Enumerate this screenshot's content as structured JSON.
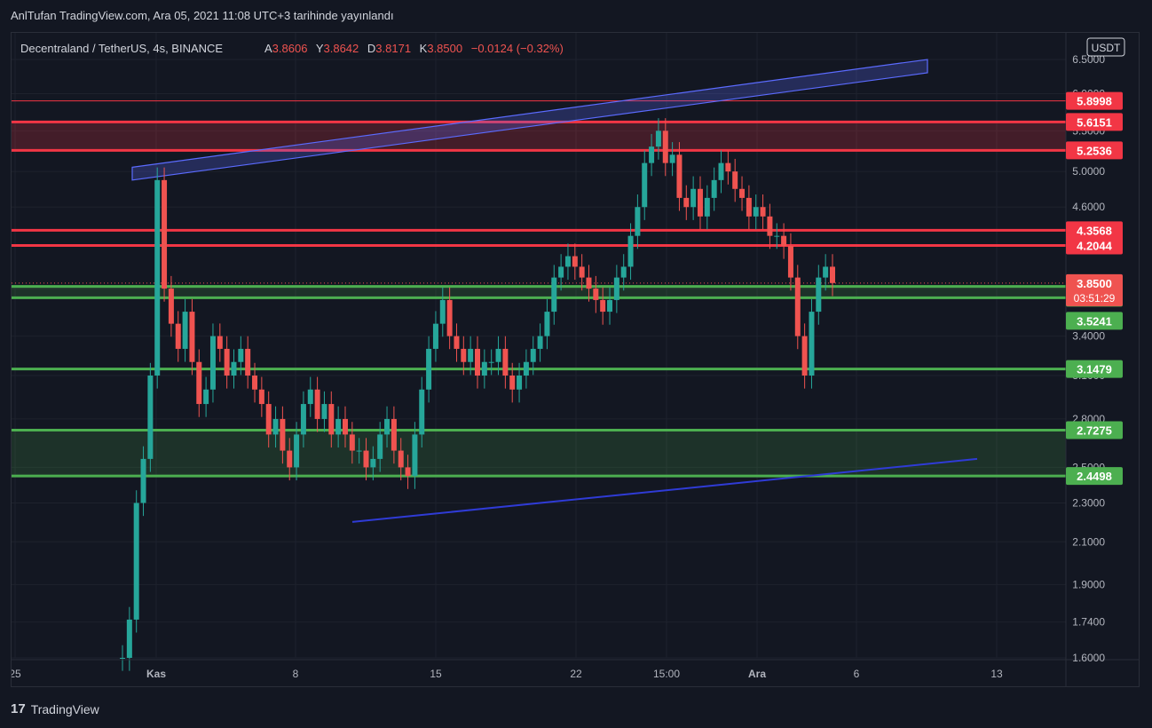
{
  "header": {
    "published": "AnlTufan TradingView.com, Ara 05, 2021 11:08 UTC+3 tarihinde yayınlandı"
  },
  "legend": {
    "symbol": "Decentraland / TetherUS, 4s, BINANCE",
    "o_label": "A",
    "o_value": "3.8606",
    "h_label": "Y",
    "h_value": "3.8642",
    "l_label": "D",
    "l_value": "3.8171",
    "c_label": "K",
    "c_value": "3.8500",
    "change": "−0.0124 (−0.32%)"
  },
  "currency": "USDT",
  "footer": {
    "brand": "TradingView",
    "logo": "17"
  },
  "colors": {
    "bg": "#131722",
    "up": "#26a69a",
    "down": "#ef5350",
    "red_level": "#f23645",
    "green_level": "#4caf50",
    "channel": "#5b6bff"
  },
  "chart_data": {
    "type": "candlestick",
    "y_scale": "log",
    "ylim": [
      1.6,
      6.5
    ],
    "x_ticks": [
      "25",
      "Kas",
      "8",
      "15",
      "22",
      "15:00",
      "Ara",
      "6",
      "13"
    ],
    "y_ticks": [
      "6.5000",
      "6.0000",
      "5.5000",
      "5.0000",
      "4.6000",
      "4.2000",
      "3.8000",
      "3.4000",
      "3.1000",
      "2.8000",
      "2.5000",
      "2.3000",
      "2.1000",
      "1.9000",
      "1.7400",
      "1.6000"
    ],
    "last_price": "3.8500",
    "countdown": "03:51:29",
    "resistance_levels": [
      "5.8998",
      "5.6151",
      "5.2536",
      "4.3568",
      "4.2044"
    ],
    "support_levels": [
      "3.7199",
      "3.5241",
      "3.1479",
      "2.7275",
      "2.4498"
    ],
    "series": [
      {
        "values": [
          1.6,
          1.75,
          2.3,
          2.55,
          3.1,
          4.9,
          3.8,
          3.5,
          3.3,
          3.6,
          3.2,
          2.9,
          3.0,
          3.4,
          3.3,
          3.1,
          3.2,
          3.3,
          3.1,
          3.0,
          2.9,
          2.7,
          2.8,
          2.6,
          2.5,
          2.7,
          2.9,
          3.0,
          2.8,
          2.9,
          2.7,
          2.8,
          2.7,
          2.6,
          2.6,
          2.5,
          2.55,
          2.7,
          2.8,
          2.6,
          2.5,
          2.45,
          2.7,
          3.0,
          3.3,
          3.5,
          3.7,
          3.4,
          3.3,
          3.2,
          3.3,
          3.1,
          3.2,
          3.2,
          3.3,
          3.1,
          3.0,
          3.1,
          3.2,
          3.3,
          3.4,
          3.6,
          3.9,
          4.0,
          4.1,
          4.0,
          3.9,
          3.8,
          3.7,
          3.6,
          3.7,
          3.9,
          4.0,
          4.3,
          4.6,
          5.1,
          5.3,
          5.5,
          5.1,
          5.2,
          4.7,
          4.6,
          4.8,
          4.5,
          4.7,
          4.9,
          5.1,
          5.0,
          4.8,
          4.7,
          4.5,
          4.6,
          4.5,
          4.3,
          4.3,
          4.2,
          3.9,
          3.4,
          3.1,
          3.6,
          3.9,
          4.0,
          3.85
        ]
      }
    ]
  }
}
